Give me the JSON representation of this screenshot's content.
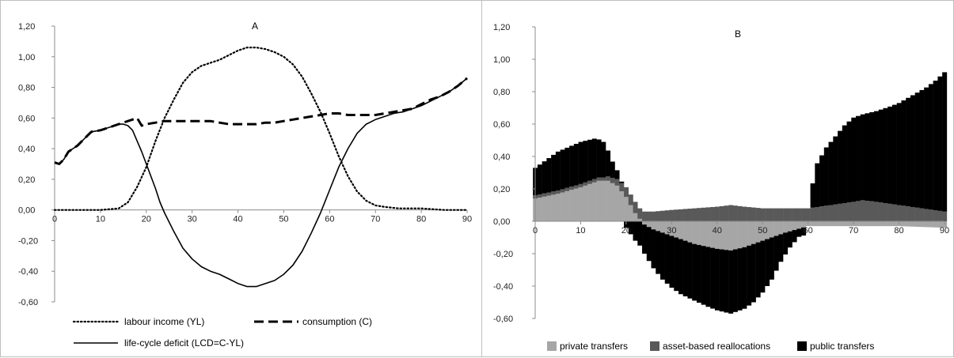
{
  "chart_data": [
    {
      "type": "line",
      "title": "A",
      "xlabel": "",
      "ylabel": "",
      "xlim": [
        0,
        90
      ],
      "ylim": [
        -0.6,
        1.2
      ],
      "x_ticks": [
        "0",
        "10",
        "20",
        "30",
        "40",
        "50",
        "60",
        "70",
        "80",
        "90"
      ],
      "y_ticks": [
        "-0,60",
        "-0,40",
        "-0,20",
        "0,00",
        "0,20",
        "0,40",
        "0,60",
        "0,80",
        "1,00",
        "1,20"
      ],
      "grid": false,
      "legend_position": "bottom",
      "series": [
        {
          "name": "labour income (YL)",
          "style": "dotted",
          "points": [
            [
              0,
              0
            ],
            [
              5,
              0
            ],
            [
              10,
              0
            ],
            [
              14,
              0.01
            ],
            [
              16,
              0.05
            ],
            [
              18,
              0.15
            ],
            [
              20,
              0.28
            ],
            [
              22,
              0.45
            ],
            [
              24,
              0.6
            ],
            [
              26,
              0.72
            ],
            [
              28,
              0.83
            ],
            [
              30,
              0.9
            ],
            [
              32,
              0.94
            ],
            [
              34,
              0.96
            ],
            [
              36,
              0.98
            ],
            [
              38,
              1.01
            ],
            [
              40,
              1.04
            ],
            [
              42,
              1.06
            ],
            [
              44,
              1.06
            ],
            [
              46,
              1.05
            ],
            [
              48,
              1.03
            ],
            [
              50,
              1.0
            ],
            [
              52,
              0.95
            ],
            [
              54,
              0.87
            ],
            [
              56,
              0.76
            ],
            [
              58,
              0.64
            ],
            [
              60,
              0.5
            ],
            [
              62,
              0.35
            ],
            [
              64,
              0.22
            ],
            [
              66,
              0.12
            ],
            [
              68,
              0.06
            ],
            [
              70,
              0.03
            ],
            [
              72,
              0.02
            ],
            [
              75,
              0.01
            ],
            [
              80,
              0.01
            ],
            [
              85,
              0.0
            ],
            [
              90,
              0.0
            ]
          ]
        },
        {
          "name": "consumption (C)",
          "style": "dashed",
          "points": [
            [
              0,
              0.31
            ],
            [
              1,
              0.3
            ],
            [
              2,
              0.33
            ],
            [
              3,
              0.38
            ],
            [
              5,
              0.42
            ],
            [
              7,
              0.48
            ],
            [
              8,
              0.51
            ],
            [
              10,
              0.52
            ],
            [
              12,
              0.54
            ],
            [
              14,
              0.56
            ],
            [
              16,
              0.58
            ],
            [
              17,
              0.59
            ],
            [
              18,
              0.6
            ],
            [
              19,
              0.55
            ],
            [
              20,
              0.56
            ],
            [
              22,
              0.57
            ],
            [
              24,
              0.58
            ],
            [
              26,
              0.58
            ],
            [
              28,
              0.58
            ],
            [
              30,
              0.58
            ],
            [
              32,
              0.58
            ],
            [
              34,
              0.58
            ],
            [
              36,
              0.57
            ],
            [
              38,
              0.56
            ],
            [
              40,
              0.56
            ],
            [
              42,
              0.56
            ],
            [
              44,
              0.56
            ],
            [
              46,
              0.57
            ],
            [
              48,
              0.57
            ],
            [
              50,
              0.58
            ],
            [
              52,
              0.59
            ],
            [
              54,
              0.6
            ],
            [
              56,
              0.61
            ],
            [
              58,
              0.62
            ],
            [
              60,
              0.63
            ],
            [
              62,
              0.63
            ],
            [
              64,
              0.62
            ],
            [
              66,
              0.62
            ],
            [
              68,
              0.62
            ],
            [
              70,
              0.62
            ],
            [
              72,
              0.63
            ],
            [
              74,
              0.64
            ],
            [
              76,
              0.65
            ],
            [
              78,
              0.66
            ],
            [
              80,
              0.69
            ],
            [
              82,
              0.72
            ],
            [
              84,
              0.74
            ],
            [
              86,
              0.77
            ],
            [
              88,
              0.81
            ],
            [
              90,
              0.86
            ]
          ]
        },
        {
          "name": "life-cycle deficit (LCD=C-YL)",
          "style": "solid",
          "points": [
            [
              0,
              0.31
            ],
            [
              1,
              0.3
            ],
            [
              2,
              0.33
            ],
            [
              3,
              0.38
            ],
            [
              5,
              0.42
            ],
            [
              7,
              0.48
            ],
            [
              8,
              0.51
            ],
            [
              10,
              0.52
            ],
            [
              12,
              0.54
            ],
            [
              14,
              0.56
            ],
            [
              15,
              0.56
            ],
            [
              16,
              0.55
            ],
            [
              17,
              0.52
            ],
            [
              18,
              0.45
            ],
            [
              19,
              0.38
            ],
            [
              20,
              0.3
            ],
            [
              22,
              0.14
            ],
            [
              23,
              0.05
            ],
            [
              24,
              -0.02
            ],
            [
              26,
              -0.14
            ],
            [
              28,
              -0.25
            ],
            [
              30,
              -0.32
            ],
            [
              32,
              -0.37
            ],
            [
              34,
              -0.4
            ],
            [
              36,
              -0.42
            ],
            [
              38,
              -0.45
            ],
            [
              40,
              -0.48
            ],
            [
              42,
              -0.5
            ],
            [
              44,
              -0.5
            ],
            [
              46,
              -0.48
            ],
            [
              48,
              -0.46
            ],
            [
              50,
              -0.42
            ],
            [
              52,
              -0.36
            ],
            [
              54,
              -0.27
            ],
            [
              56,
              -0.15
            ],
            [
              58,
              -0.02
            ],
            [
              60,
              0.13
            ],
            [
              62,
              0.28
            ],
            [
              64,
              0.4
            ],
            [
              66,
              0.5
            ],
            [
              68,
              0.56
            ],
            [
              70,
              0.59
            ],
            [
              72,
              0.61
            ],
            [
              74,
              0.63
            ],
            [
              76,
              0.64
            ],
            [
              78,
              0.66
            ],
            [
              80,
              0.68
            ],
            [
              82,
              0.71
            ],
            [
              84,
              0.74
            ],
            [
              86,
              0.77
            ],
            [
              88,
              0.81
            ],
            [
              90,
              0.86
            ]
          ]
        }
      ]
    },
    {
      "type": "bar",
      "stacked": true,
      "title": "B",
      "xlabel": "",
      "ylabel": "",
      "xlim": [
        0,
        90
      ],
      "ylim": [
        -0.6,
        1.2
      ],
      "x_ticks": [
        "0",
        "10",
        "20",
        "30",
        "40",
        "50",
        "60",
        "70",
        "80",
        "90"
      ],
      "y_ticks": [
        "-0,60",
        "-0,40",
        "-0,20",
        "0,00",
        "0,20",
        "0,40",
        "0,60",
        "0,80",
        "1,00",
        "1,20"
      ],
      "grid": false,
      "legend_position": "bottom",
      "series": [
        {
          "name": "private transfers",
          "color": "#a6a6a6",
          "points": [
            [
              0,
              0.14
            ],
            [
              5,
              0.17
            ],
            [
              10,
              0.21
            ],
            [
              14,
              0.25
            ],
            [
              16,
              0.25
            ],
            [
              18,
              0.22
            ],
            [
              20,
              0.15
            ],
            [
              22,
              0.05
            ],
            [
              24,
              -0.02
            ],
            [
              26,
              -0.05
            ],
            [
              30,
              -0.09
            ],
            [
              35,
              -0.14
            ],
            [
              40,
              -0.17
            ],
            [
              43,
              -0.18
            ],
            [
              46,
              -0.16
            ],
            [
              50,
              -0.12
            ],
            [
              55,
              -0.07
            ],
            [
              60,
              -0.03
            ],
            [
              65,
              -0.03
            ],
            [
              70,
              -0.03
            ],
            [
              80,
              -0.03
            ],
            [
              90,
              -0.04
            ]
          ]
        },
        {
          "name": "asset-based reallocations",
          "color": "#595959",
          "points": [
            [
              0,
              0.02
            ],
            [
              5,
              0.02
            ],
            [
              10,
              0.02
            ],
            [
              15,
              0.02
            ],
            [
              18,
              0.04
            ],
            [
              20,
              0.06
            ],
            [
              22,
              0.07
            ],
            [
              24,
              0.06
            ],
            [
              26,
              0.06
            ],
            [
              30,
              0.07
            ],
            [
              35,
              0.08
            ],
            [
              40,
              0.09
            ],
            [
              43,
              0.1
            ],
            [
              46,
              0.09
            ],
            [
              50,
              0.08
            ],
            [
              55,
              0.08
            ],
            [
              60,
              0.08
            ],
            [
              65,
              0.1
            ],
            [
              70,
              0.12
            ],
            [
              72,
              0.13
            ],
            [
              75,
              0.12
            ],
            [
              80,
              0.1
            ],
            [
              85,
              0.08
            ],
            [
              90,
              0.06
            ]
          ]
        },
        {
          "name": "public transfers",
          "color": "#000000",
          "points": [
            [
              0,
              0.17
            ],
            [
              5,
              0.24
            ],
            [
              10,
              0.26
            ],
            [
              13,
              0.25
            ],
            [
              15,
              0.22
            ],
            [
              17,
              0.1
            ],
            [
              19,
              0.01
            ],
            [
              20,
              -0.04
            ],
            [
              22,
              -0.12
            ],
            [
              24,
              -0.18
            ],
            [
              26,
              -0.24
            ],
            [
              28,
              -0.29
            ],
            [
              30,
              -0.32
            ],
            [
              32,
              -0.34
            ],
            [
              35,
              -0.35
            ],
            [
              38,
              -0.37
            ],
            [
              40,
              -0.38
            ],
            [
              43,
              -0.39
            ],
            [
              46,
              -0.38
            ],
            [
              48,
              -0.36
            ],
            [
              50,
              -0.32
            ],
            [
              52,
              -0.26
            ],
            [
              54,
              -0.17
            ],
            [
              56,
              -0.1
            ],
            [
              58,
              -0.05
            ],
            [
              59,
              -0.05
            ],
            [
              60,
              0.0
            ],
            [
              61,
              0.15
            ],
            [
              62,
              0.27
            ],
            [
              64,
              0.36
            ],
            [
              66,
              0.42
            ],
            [
              68,
              0.48
            ],
            [
              70,
              0.52
            ],
            [
              72,
              0.53
            ],
            [
              75,
              0.56
            ],
            [
              78,
              0.6
            ],
            [
              80,
              0.63
            ],
            [
              82,
              0.67
            ],
            [
              84,
              0.71
            ],
            [
              86,
              0.75
            ],
            [
              88,
              0.8
            ],
            [
              90,
              0.86
            ]
          ]
        }
      ]
    }
  ]
}
